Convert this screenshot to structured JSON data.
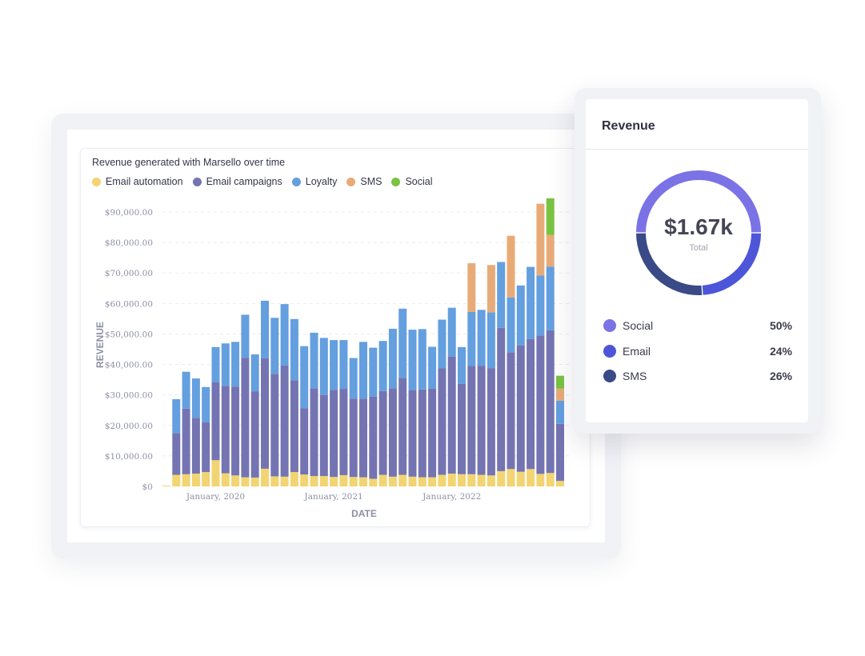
{
  "chart_card": {
    "title": "Revenue generated with Marsello over time"
  },
  "chart_data": {
    "type": "bar",
    "stacked": true,
    "title": "Revenue generated with Marsello over time",
    "xlabel": "DATE",
    "ylabel": "REVENUE",
    "ylim": [
      0,
      90000
    ],
    "grid": true,
    "legend_position": "top-left",
    "y_ticks": [
      "$0",
      "$10,000.00",
      "$20,000.00",
      "$30,000.00",
      "$40,000.00",
      "$50,000.00",
      "$60,000.00",
      "$70,000.00",
      "$80,000.00",
      "$90,000.00"
    ],
    "y_tick_values": [
      0,
      10000,
      20000,
      30000,
      40000,
      50000,
      60000,
      70000,
      80000,
      90000
    ],
    "x_tick_labels": [
      {
        "label": "January, 2020",
        "index": 5
      },
      {
        "label": "January, 2021",
        "index": 17
      },
      {
        "label": "January, 2022",
        "index": 29
      }
    ],
    "series": [
      {
        "name": "Email automation",
        "color": "#f2d472",
        "values": [
          0,
          3800,
          4000,
          4200,
          4700,
          8600,
          4300,
          3600,
          3000,
          2900,
          5800,
          3300,
          3200,
          4700,
          3900,
          3400,
          3400,
          3100,
          3700,
          3100,
          3000,
          2500,
          3800,
          3200,
          3800,
          3200,
          3000,
          3000,
          3800,
          4200,
          4000,
          4000,
          3800,
          3600,
          5000,
          5700,
          4800,
          5700,
          4100,
          4400,
          1800
        ]
      },
      {
        "name": "Email campaigns",
        "color": "#7574b2",
        "values": [
          0,
          13700,
          21500,
          18300,
          16300,
          25500,
          28700,
          29100,
          39200,
          28300,
          36200,
          33600,
          36500,
          30100,
          21700,
          28800,
          26600,
          28600,
          28300,
          25700,
          25700,
          26900,
          27500,
          29000,
          31800,
          28400,
          28800,
          29100,
          34900,
          38400,
          29600,
          35500,
          35800,
          35200,
          47000,
          38300,
          41400,
          42600,
          45400,
          46800,
          18700
        ]
      },
      {
        "name": "Loyalty",
        "color": "#649fdf",
        "values": [
          0,
          11100,
          12100,
          12900,
          11600,
          11600,
          13900,
          14700,
          14100,
          12100,
          18900,
          18400,
          20100,
          20100,
          20400,
          18200,
          18700,
          16300,
          16000,
          13300,
          18700,
          16100,
          16400,
          19500,
          22700,
          19800,
          19800,
          13700,
          16000,
          16000,
          12100,
          17700,
          18300,
          18300,
          21600,
          18000,
          19700,
          23700,
          19700,
          20900,
          7600
        ]
      },
      {
        "name": "SMS",
        "color": "#e8ab78",
        "values": [
          0,
          0,
          0,
          0,
          0,
          0,
          0,
          0,
          0,
          0,
          0,
          0,
          0,
          0,
          0,
          0,
          0,
          0,
          0,
          0,
          0,
          0,
          0,
          0,
          0,
          0,
          0,
          0,
          0,
          0,
          0,
          16000,
          0,
          15500,
          0,
          20200,
          0,
          0,
          23500,
          10400,
          4000
        ]
      },
      {
        "name": "Social",
        "color": "#79c342",
        "values": [
          0,
          0,
          0,
          0,
          0,
          0,
          0,
          0,
          0,
          0,
          0,
          0,
          0,
          0,
          0,
          0,
          0,
          0,
          0,
          0,
          0,
          0,
          0,
          0,
          0,
          0,
          0,
          0,
          0,
          0,
          0,
          0,
          0,
          0,
          0,
          0,
          0,
          0,
          0,
          12000,
          4200
        ]
      }
    ]
  },
  "revenue_panel": {
    "title": "Revenue",
    "total_value": "$1.67k",
    "total_label": "Total",
    "segments": [
      {
        "name": "Social",
        "percent_label": "50%",
        "fraction": 0.5,
        "color": "#7b72e6"
      },
      {
        "name": "Email",
        "percent_label": "24%",
        "fraction": 0.24,
        "color": "#4d56d8"
      },
      {
        "name": "SMS",
        "percent_label": "26%",
        "fraction": 0.26,
        "color": "#3a4a86"
      }
    ]
  }
}
